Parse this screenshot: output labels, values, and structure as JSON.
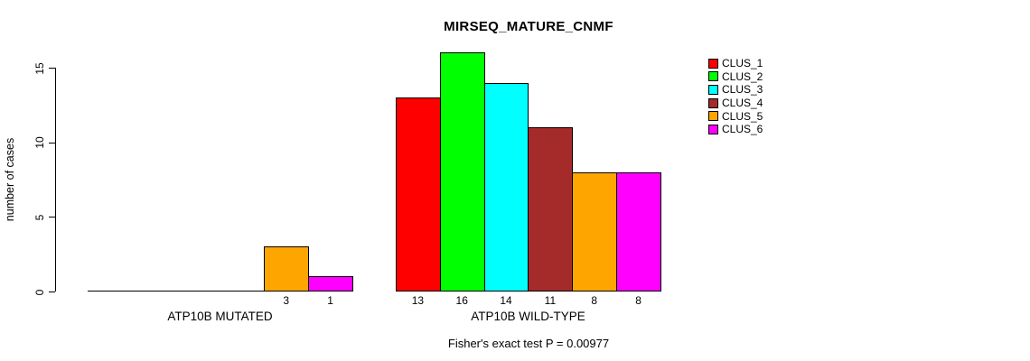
{
  "chart_data": {
    "type": "bar",
    "title": "MIRSEQ_MATURE_CNMF",
    "ylabel": "number of cases",
    "xlabel": "",
    "footnote": "Fisher's exact test P = 0.00977",
    "yticks": [
      0,
      5,
      10,
      15
    ],
    "ylim": [
      0,
      16
    ],
    "grid": false,
    "legend_position": "right",
    "series": [
      {
        "name": "CLUS_1",
        "color": "#ff0000"
      },
      {
        "name": "CLUS_2",
        "color": "#00ff00"
      },
      {
        "name": "CLUS_3",
        "color": "#00ffff"
      },
      {
        "name": "CLUS_4",
        "color": "#a52a2a"
      },
      {
        "name": "CLUS_5",
        "color": "#ffa500"
      },
      {
        "name": "CLUS_6",
        "color": "#ff00ff"
      }
    ],
    "groups": [
      {
        "label": "ATP10B MUTATED",
        "values": [
          0,
          0,
          0,
          0,
          3,
          1
        ],
        "bar_labels": [
          "",
          "",
          "",
          "",
          "3",
          "1"
        ]
      },
      {
        "label": "ATP10B WILD-TYPE",
        "values": [
          13,
          16,
          14,
          11,
          8,
          8
        ],
        "bar_labels": [
          "13",
          "16",
          "14",
          "11",
          "8",
          "8"
        ]
      }
    ]
  }
}
